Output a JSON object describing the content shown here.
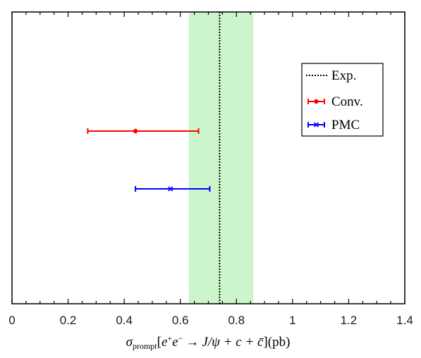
{
  "chart_data": {
    "type": "scatter",
    "xlim": [
      0,
      1.4
    ],
    "xticks": [
      "0",
      "0.2",
      "0.4",
      "0.6",
      "0.8",
      "1",
      "1.2",
      "1.4"
    ],
    "xticks_values": [
      0,
      0.2,
      0.4,
      0.6,
      0.8,
      1.0,
      1.2,
      1.4
    ],
    "grid": false,
    "legend_position": "top-right",
    "xlabel": {
      "sigma": "σ",
      "sub": "prompt",
      "open": "[",
      "e1": "e",
      "sup1": "+",
      "e2": "e",
      "sup2": "−",
      "arrow": "→",
      "rest": "J/ψ + c + c̄",
      "close": "](pb)"
    },
    "experiment": {
      "name": "Exp.",
      "value": 0.74,
      "band": [
        0.63,
        0.86
      ],
      "line_color": "#000000",
      "band_color": "#ccf5cc"
    },
    "series": [
      {
        "name": "Conv.",
        "value": 0.44,
        "low": 0.27,
        "high": 0.665,
        "color": "#ff0000",
        "marker": "dot",
        "row": 1
      },
      {
        "name": "PMC",
        "value": 0.565,
        "low": 0.44,
        "high": 0.705,
        "color": "#0000ff",
        "marker": "x",
        "row": 2
      }
    ]
  }
}
